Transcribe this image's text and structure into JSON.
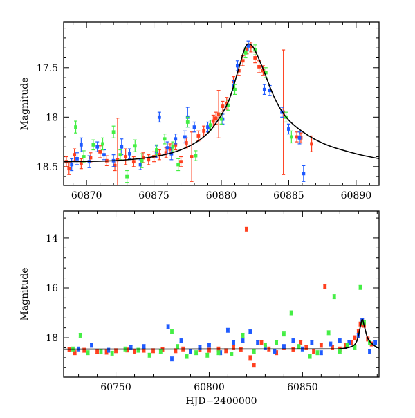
{
  "chart_data": [
    {
      "type": "scatter",
      "title": "",
      "xlabel": "",
      "ylabel": "Magnitude",
      "xlim": [
        60868.3,
        60891.7
      ],
      "ylim": [
        18.69,
        17.04
      ],
      "y_inverted": true,
      "xticks": [
        60870,
        60875,
        60880,
        60885,
        60890
      ],
      "xtick_labels": [
        "60870",
        "60875",
        "60880",
        "60885",
        "60890"
      ],
      "yticks": [
        17.5,
        18,
        18.5
      ],
      "ytick_labels": [
        "17.5",
        "18",
        "18.5"
      ],
      "grid": false,
      "legend": "none",
      "model_curve": {
        "color": "#000000",
        "points": [
          [
            60868.3,
            18.45
          ],
          [
            60872,
            18.44
          ],
          [
            60875,
            18.4
          ],
          [
            60877,
            18.33
          ],
          [
            60878.5,
            18.22
          ],
          [
            60879.5,
            18.08
          ],
          [
            60880.5,
            17.85
          ],
          [
            60881.2,
            17.55
          ],
          [
            60881.7,
            17.32
          ],
          [
            60882.0,
            17.26
          ],
          [
            60882.4,
            17.3
          ],
          [
            60883.0,
            17.48
          ],
          [
            60884.0,
            17.82
          ],
          [
            60885.0,
            18.03
          ],
          [
            60886.5,
            18.19
          ],
          [
            60888.0,
            18.29
          ],
          [
            60890.0,
            18.37
          ],
          [
            60891.7,
            18.42
          ]
        ]
      },
      "series": [
        {
          "color": "#ff3f1e",
          "points": [
            [
              60868.5,
              18.45,
              0.05
            ],
            [
              60868.7,
              18.52,
              0.06
            ],
            [
              60869.1,
              18.38,
              0.06
            ],
            [
              60869.6,
              18.47,
              0.05
            ],
            [
              60870.3,
              18.41,
              0.05
            ],
            [
              60871.0,
              18.35,
              0.06
            ],
            [
              60871.5,
              18.44,
              0.05
            ],
            [
              60872.1,
              18.49,
              0.05
            ],
            [
              60872.3,
              18.43,
              0.42
            ],
            [
              60872.9,
              18.4,
              0.08
            ],
            [
              60873.5,
              18.45,
              0.05
            ],
            [
              60874.2,
              18.41,
              0.05
            ],
            [
              60874.6,
              18.43,
              0.05
            ],
            [
              60875.0,
              18.4,
              0.05
            ],
            [
              60875.4,
              18.38,
              0.05
            ],
            [
              60875.9,
              18.36,
              0.05
            ],
            [
              60876.2,
              18.32,
              0.05
            ],
            [
              60876.6,
              18.28,
              0.05
            ],
            [
              60877.0,
              18.45,
              0.05
            ],
            [
              60877.4,
              18.26,
              0.05
            ],
            [
              60877.8,
              18.4,
              0.25
            ],
            [
              60878.3,
              18.19,
              0.05
            ],
            [
              60878.7,
              18.14,
              0.05
            ],
            [
              60879.4,
              18.04,
              0.06
            ],
            [
              60879.6,
              18.01,
              0.06
            ],
            [
              60879.8,
              17.97,
              0.24
            ],
            [
              60880.1,
              17.89,
              0.05
            ],
            [
              60880.4,
              17.86,
              0.06
            ],
            [
              60880.9,
              17.64,
              0.05
            ],
            [
              60881.3,
              17.53,
              0.05
            ],
            [
              60881.6,
              17.43,
              0.05
            ],
            [
              60881.9,
              17.31,
              0.05
            ],
            [
              60882.2,
              17.29,
              0.05
            ],
            [
              60882.5,
              17.4,
              0.05
            ],
            [
              60882.8,
              17.49,
              0.06
            ],
            [
              60883.1,
              17.53,
              0.05
            ],
            [
              60884.6,
              17.95,
              0.63
            ],
            [
              60885.6,
              18.2,
              0.05
            ],
            [
              60885.9,
              18.21,
              0.05
            ],
            [
              60886.7,
              18.27,
              0.08
            ]
          ]
        },
        {
          "color": "#1e5aff",
          "points": [
            [
              60868.9,
              18.48,
              0.06
            ],
            [
              60869.3,
              18.42,
              0.06
            ],
            [
              60869.6,
              18.28,
              0.07
            ],
            [
              60870.2,
              18.45,
              0.06
            ],
            [
              60870.8,
              18.3,
              0.05
            ],
            [
              60871.3,
              18.38,
              0.05
            ],
            [
              60872.0,
              18.44,
              0.06
            ],
            [
              60872.6,
              18.3,
              0.08
            ],
            [
              60873.2,
              18.37,
              0.05
            ],
            [
              60874.0,
              18.48,
              0.05
            ],
            [
              60875.2,
              18.35,
              0.06
            ],
            [
              60875.4,
              18.0,
              0.05
            ],
            [
              60876.0,
              18.31,
              0.06
            ],
            [
              60876.3,
              18.37,
              0.06
            ],
            [
              60876.6,
              18.22,
              0.05
            ],
            [
              60877.3,
              18.2,
              0.06
            ],
            [
              60877.5,
              18.0,
              0.1
            ],
            [
              60878.0,
              18.1,
              0.05
            ],
            [
              60879.0,
              18.1,
              0.05
            ],
            [
              60880.1,
              18.02,
              0.05
            ],
            [
              60880.9,
              17.68,
              0.05
            ],
            [
              60881.2,
              17.48,
              0.05
            ],
            [
              60882.0,
              17.28,
              0.05
            ],
            [
              60883.2,
              17.72,
              0.05
            ],
            [
              60883.6,
              17.73,
              0.05
            ],
            [
              60884.5,
              17.95,
              0.05
            ],
            [
              60885.0,
              18.12,
              0.05
            ],
            [
              60885.8,
              18.21,
              0.06
            ],
            [
              60886.1,
              18.57,
              0.08
            ]
          ]
        },
        {
          "color": "#44ee44",
          "points": [
            [
              60869.2,
              18.1,
              0.06
            ],
            [
              60869.8,
              18.4,
              0.06
            ],
            [
              60870.5,
              18.28,
              0.05
            ],
            [
              60871.2,
              18.27,
              0.06
            ],
            [
              60872.0,
              18.15,
              0.06
            ],
            [
              60872.5,
              18.38,
              0.05
            ],
            [
              60873.0,
              18.6,
              0.06
            ],
            [
              60873.6,
              18.29,
              0.06
            ],
            [
              60874.1,
              18.44,
              0.07
            ],
            [
              60875.2,
              18.33,
              0.05
            ],
            [
              60875.8,
              18.22,
              0.05
            ],
            [
              60876.4,
              18.3,
              0.05
            ],
            [
              60876.8,
              18.48,
              0.06
            ],
            [
              60877.5,
              18.05,
              0.05
            ],
            [
              60878.1,
              18.39,
              0.05
            ],
            [
              60879.2,
              18.08,
              0.05
            ],
            [
              60880.0,
              18.02,
              0.05
            ],
            [
              60880.5,
              17.88,
              0.05
            ],
            [
              60881.0,
              17.72,
              0.05
            ],
            [
              60881.8,
              17.35,
              0.05
            ],
            [
              60882.5,
              17.32,
              0.05
            ],
            [
              60883.3,
              17.55,
              0.05
            ],
            [
              60884.8,
              18.0,
              0.05
            ],
            [
              60885.2,
              18.2,
              0.06
            ]
          ]
        }
      ]
    },
    {
      "type": "scatter",
      "title": "",
      "xlabel": "HJD−2400000",
      "ylabel": "Magnitude",
      "xlim": [
        60722,
        60891
      ],
      "ylim": [
        19.58,
        12.92
      ],
      "y_inverted": true,
      "xticks": [
        60750,
        60800,
        60850
      ],
      "xtick_labels": [
        "60750",
        "60800",
        "60850"
      ],
      "yticks": [
        14,
        16,
        18
      ],
      "ytick_labels": [
        "14",
        "16",
        "18"
      ],
      "grid": false,
      "legend": "none",
      "model_curve": {
        "color": "#000000",
        "points": [
          [
            60722,
            18.46
          ],
          [
            60860,
            18.45
          ],
          [
            60870,
            18.44
          ],
          [
            60876,
            18.36
          ],
          [
            60879,
            18.15
          ],
          [
            60881,
            17.55
          ],
          [
            60882,
            17.26
          ],
          [
            60883,
            17.5
          ],
          [
            60885,
            18.03
          ],
          [
            60888,
            18.29
          ],
          [
            60891,
            18.42
          ]
        ]
      },
      "series": [
        {
          "color": "#ff3f1e",
          "points": [
            [
              60725,
              18.48
            ],
            [
              60728,
              18.6
            ],
            [
              60733,
              18.5
            ],
            [
              60740,
              18.54
            ],
            [
              60745,
              18.58
            ],
            [
              60750,
              18.52
            ],
            [
              60756,
              18.49
            ],
            [
              60760,
              18.55
            ],
            [
              60765,
              18.5
            ],
            [
              60770,
              18.52
            ],
            [
              60775,
              18.48
            ],
            [
              60782,
              18.52
            ],
            [
              60786,
              18.45
            ],
            [
              60790,
              18.55
            ],
            [
              60795,
              18.48
            ],
            [
              60800,
              18.5
            ],
            [
              60805,
              18.45
            ],
            [
              60809,
              18.52
            ],
            [
              60813,
              18.4
            ],
            [
              60817,
              18.48
            ],
            [
              60820,
              13.65
            ],
            [
              60822,
              18.8
            ],
            [
              60824,
              19.1
            ],
            [
              60828,
              18.2
            ],
            [
              60832,
              18.45
            ],
            [
              60836,
              18.6
            ],
            [
              60840,
              18.4
            ],
            [
              60845,
              18.48
            ],
            [
              60849,
              18.2
            ],
            [
              60852,
              18.4
            ],
            [
              60856,
              18.55
            ],
            [
              60860,
              18.3
            ],
            [
              60862,
              15.95
            ],
            [
              60866,
              18.4
            ],
            [
              60870,
              18.45
            ],
            [
              60873,
              18.3
            ],
            [
              60876,
              18.2
            ],
            [
              60878,
              18.0
            ],
            [
              60880,
              17.75
            ],
            [
              60881,
              17.45
            ],
            [
              60882,
              17.3
            ],
            [
              60883,
              17.5
            ],
            [
              60885,
              18.05
            ],
            [
              60887,
              18.25
            ]
          ]
        },
        {
          "color": "#1e5aff",
          "points": [
            [
              60730,
              18.45
            ],
            [
              60737,
              18.3
            ],
            [
              60746,
              18.5
            ],
            [
              60758,
              18.4
            ],
            [
              60765,
              18.35
            ],
            [
              60778,
              17.55
            ],
            [
              60780,
              18.85
            ],
            [
              60785,
              18.1
            ],
            [
              60790,
              18.55
            ],
            [
              60795,
              18.4
            ],
            [
              60800,
              18.3
            ],
            [
              60806,
              18.6
            ],
            [
              60810,
              17.7
            ],
            [
              60813,
              18.2
            ],
            [
              60818,
              18.1
            ],
            [
              60822,
              17.75
            ],
            [
              60826,
              18.2
            ],
            [
              60830,
              18.4
            ],
            [
              60835,
              18.55
            ],
            [
              60840,
              18.35
            ],
            [
              60845,
              18.1
            ],
            [
              60850,
              18.45
            ],
            [
              60855,
              18.2
            ],
            [
              60860,
              18.6
            ],
            [
              60865,
              18.25
            ],
            [
              60870,
              18.1
            ],
            [
              60875,
              18.2
            ],
            [
              60880,
              17.9
            ],
            [
              60882,
              17.3
            ],
            [
              60886,
              18.55
            ],
            [
              60889,
              18.2
            ]
          ]
        },
        {
          "color": "#44ee44",
          "points": [
            [
              60727,
              18.45
            ],
            [
              60731,
              17.9
            ],
            [
              60735,
              18.6
            ],
            [
              60742,
              18.55
            ],
            [
              60748,
              18.62
            ],
            [
              60755,
              18.45
            ],
            [
              60762,
              18.5
            ],
            [
              60768,
              18.7
            ],
            [
              60774,
              18.55
            ],
            [
              60780,
              17.75
            ],
            [
              60783,
              18.35
            ],
            [
              60788,
              18.75
            ],
            [
              60793,
              18.6
            ],
            [
              60799,
              18.7
            ],
            [
              60805,
              18.6
            ],
            [
              60812,
              18.65
            ],
            [
              60818,
              17.9
            ],
            [
              60824,
              18.55
            ],
            [
              60830,
              18.3
            ],
            [
              60836,
              18.2
            ],
            [
              60840,
              17.85
            ],
            [
              60844,
              17.0
            ],
            [
              60848,
              18.35
            ],
            [
              60854,
              18.75
            ],
            [
              60858,
              18.6
            ],
            [
              60864,
              17.8
            ],
            [
              60867,
              16.35
            ],
            [
              60870,
              18.55
            ],
            [
              60874,
              18.3
            ],
            [
              60878,
              18.4
            ],
            [
              60881,
              15.98
            ],
            [
              60883,
              17.4
            ],
            [
              60886,
              18.2
            ]
          ]
        }
      ]
    }
  ]
}
